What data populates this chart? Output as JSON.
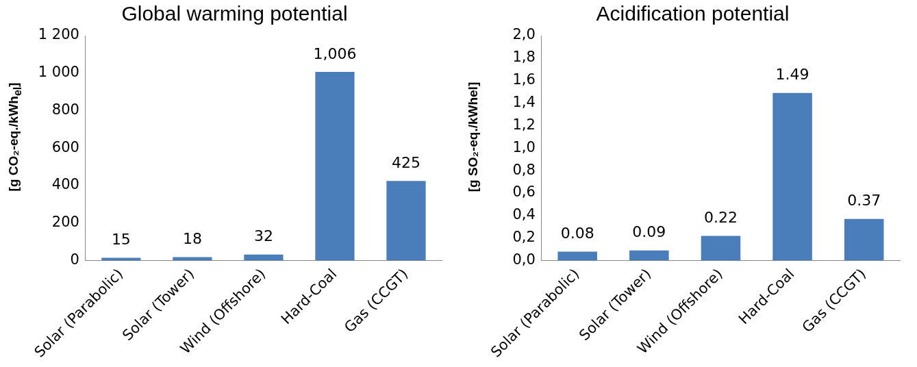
{
  "chart_data": [
    {
      "type": "bar",
      "title": "Global warming potential",
      "ylabel": "[g CO₂-eq./kWh$_{el}$]",
      "categories": [
        "Solar (Parabolic)",
        "Solar (Tower)",
        "Wind (Offshore)",
        "Hard-Coal",
        "Gas (CCGT)"
      ],
      "values": [
        15,
        18,
        32,
        1006,
        425
      ],
      "value_labels": [
        "15",
        "18",
        "32",
        "1,006",
        "425"
      ],
      "color": "#4a7ebb",
      "ylim": [
        0,
        1200
      ],
      "yticks": [
        0,
        200,
        400,
        600,
        800,
        {
          "value": 1000,
          "label": "1 000"
        },
        {
          "value": 1200,
          "label": "1 200"
        }
      ],
      "grid": false
    },
    {
      "type": "bar",
      "title": "Acidification potential",
      "ylabel": "[g SO₂-eq./kWhel]",
      "categories": [
        "Solar (Parabolic)",
        "Solar (Tower)",
        "Wind (Offshore)",
        "Hard-Coal",
        "Gas (CCGT)"
      ],
      "values": [
        0.08,
        0.09,
        0.22,
        1.49,
        0.37
      ],
      "value_labels": [
        "0.08",
        "0.09",
        "0.22",
        "1.49",
        "0.37"
      ],
      "color": "#4a7ebb",
      "ylim": [
        0,
        2
      ],
      "yticks": [
        {
          "value": 0,
          "label": "0,0"
        },
        {
          "value": 0.2,
          "label": "0,2"
        },
        {
          "value": 0.4,
          "label": "0,4"
        },
        {
          "value": 0.6,
          "label": "0,6"
        },
        {
          "value": 0.8,
          "label": "0,8"
        },
        {
          "value": 1,
          "label": "1,0"
        },
        {
          "value": 1.2,
          "label": "1,2"
        },
        {
          "value": 1.4,
          "label": "1,4"
        },
        {
          "value": 1.6,
          "label": "1,6"
        },
        {
          "value": 1.8,
          "label": "1,8"
        },
        {
          "value": 2,
          "label": "2,0"
        }
      ],
      "grid": false
    }
  ]
}
